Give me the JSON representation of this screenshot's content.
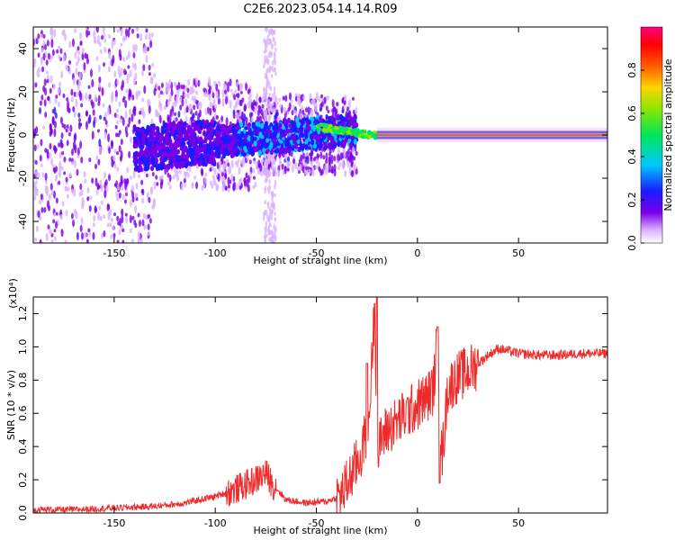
{
  "title": "C2E6.2023.054.14.14.R09",
  "colors": {
    "snr_line": "#ee2a2a",
    "background": "#ffffff",
    "axis": "#000000"
  },
  "chart_data": [
    {
      "type": "heatmap",
      "xlabel": "Height of straight line (km)",
      "ylabel": "Frequency (Hz)",
      "xlim": [
        -190,
        94
      ],
      "ylim": [
        -50,
        50
      ],
      "xticks": [
        -150,
        -100,
        -50,
        0,
        50
      ],
      "xtick_labels": [
        "-150",
        "-100",
        "-50",
        "0",
        "50"
      ],
      "yticks": [
        -40,
        -20,
        0,
        20,
        40
      ],
      "ytick_labels": [
        "-40",
        "-20",
        "0",
        "20",
        "40"
      ],
      "colorbar": {
        "label": "Normalized spectral amplitude",
        "range": [
          0,
          1
        ],
        "ticks": [
          0.0,
          0.2,
          0.4,
          0.6,
          0.8
        ],
        "tick_labels": [
          "0.0",
          "0.2",
          "0.4",
          "0.6",
          "0.8"
        ],
        "colormap": "rainbow (white-violet-blue-cyan-green-yellow-red-magenta)"
      },
      "description_data": {
        "broadband_region_x": [
          -190,
          -30
        ],
        "tone_line_x": [
          -20,
          94
        ],
        "tone_frequency": 0,
        "low_amplitude_far_x": [
          -190,
          -130
        ]
      }
    },
    {
      "type": "line",
      "xlabel": "Height of straight line (km)",
      "ylabel": "SNR (10 * v/v)",
      "scale_label": "(x10⁴)",
      "xlim": [
        -190,
        94
      ],
      "ylim": [
        0,
        1.3
      ],
      "xticks": [
        -150,
        -100,
        -50,
        0,
        50
      ],
      "xtick_labels": [
        "-150",
        "-100",
        "-50",
        "0",
        "50"
      ],
      "yticks": [
        0.0,
        0.2,
        0.4,
        0.6,
        0.8,
        1.0,
        1.2
      ],
      "ytick_labels": [
        "0.0",
        "0.2",
        "0.4",
        "0.6",
        "0.8",
        "1.0",
        "1.2"
      ],
      "series": [
        {
          "x": [
            -190,
            -170,
            -150,
            -130,
            -115,
            -100,
            -90,
            -80,
            -75,
            -72,
            -65,
            -55,
            -45,
            -38,
            -33,
            -28,
            -24,
            -21,
            -20,
            -18,
            -15,
            -10,
            -5,
            0,
            5,
            8,
            10,
            12,
            15,
            20,
            25,
            30,
            35,
            40,
            50,
            60,
            70,
            80,
            94
          ],
          "y": [
            0.02,
            0.02,
            0.03,
            0.04,
            0.06,
            0.1,
            0.14,
            0.2,
            0.24,
            0.18,
            0.08,
            0.06,
            0.07,
            0.1,
            0.22,
            0.35,
            0.55,
            1.3,
            0.3,
            0.45,
            0.5,
            0.55,
            0.6,
            0.65,
            0.7,
            0.75,
            1.1,
            0.3,
            0.75,
            0.82,
            0.85,
            0.9,
            0.95,
            0.99,
            0.96,
            0.95,
            0.95,
            0.96,
            0.96
          ]
        }
      ]
    }
  ]
}
